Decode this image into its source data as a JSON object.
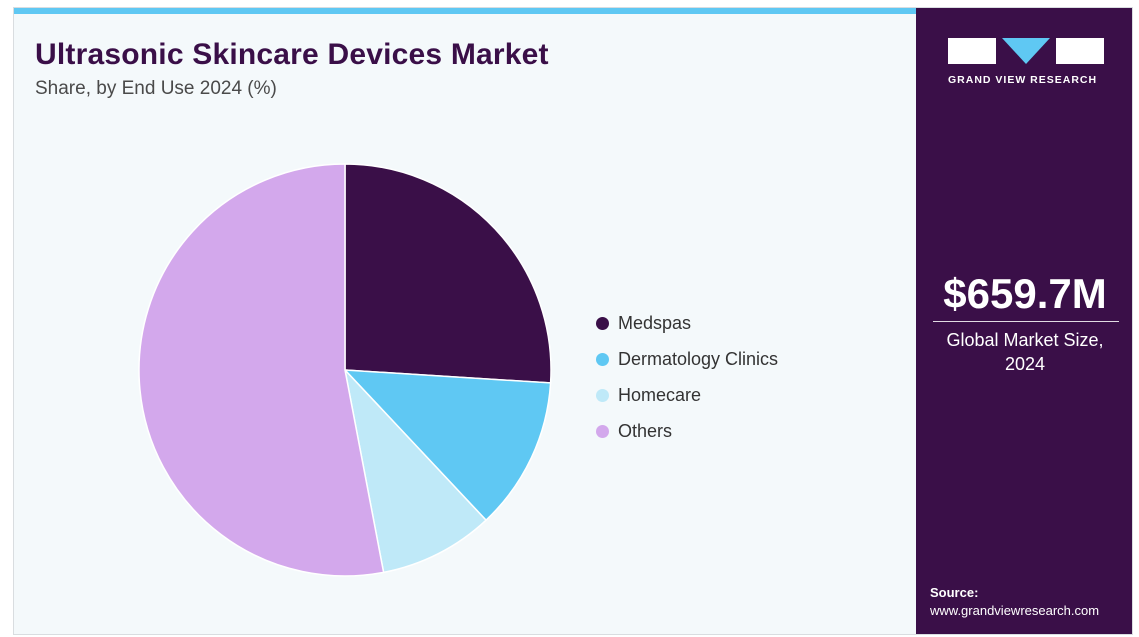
{
  "header": {
    "title": "Ultrasonic Skincare Devices Market",
    "subtitle": "Share, by End Use 2024 (%)"
  },
  "chart_data": {
    "type": "pie",
    "categories": [
      "Medspas",
      "Dermatology Clinics",
      "Homecare",
      "Others"
    ],
    "values": [
      26.0,
      12.0,
      9.0,
      53.0
    ],
    "colors": [
      "#3a0f48",
      "#5fc8f3",
      "#bfe9f8",
      "#d3a8ec"
    ],
    "legend_position": "right"
  },
  "side_panel": {
    "brand": "GRAND VIEW RESEARCH",
    "market_value": "$659.7M",
    "market_label_line1": "Global Market Size,",
    "market_label_line2": "2024",
    "source_label": "Source:",
    "source_url": "www.grandviewresearch.com"
  }
}
